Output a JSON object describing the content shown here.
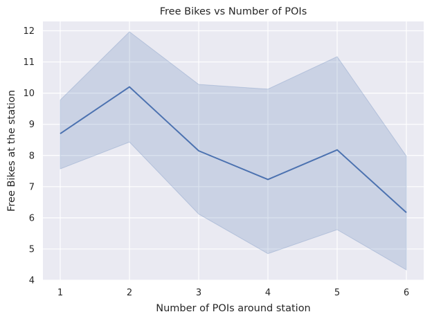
{
  "chart_data": {
    "type": "line",
    "title": "Free Bikes vs Number of POIs",
    "xlabel": "Number of POIs around station",
    "ylabel": "Free Bikes at the station",
    "x": [
      1,
      2,
      3,
      4,
      5,
      6
    ],
    "series": [
      {
        "values": [
          8.7,
          10.2,
          8.15,
          7.23,
          8.18,
          6.17
        ],
        "ci_lower": [
          7.57,
          8.43,
          6.12,
          4.85,
          5.62,
          4.33
        ],
        "ci_upper": [
          9.78,
          11.97,
          10.28,
          10.13,
          11.17,
          7.98
        ],
        "color": "#4c72b0",
        "band_color": "#4c72b0"
      }
    ],
    "xlim": [
      0.75,
      6.25
    ],
    "ylim": [
      4,
      12.3
    ],
    "xticks": [
      "1",
      "2",
      "3",
      "4",
      "5",
      "6"
    ],
    "yticks": [
      "4",
      "5",
      "6",
      "7",
      "8",
      "9",
      "10",
      "11",
      "12"
    ],
    "grid": true,
    "legend": "none",
    "background_color": "#eaeaf2",
    "grid_color": "#ffffff"
  }
}
